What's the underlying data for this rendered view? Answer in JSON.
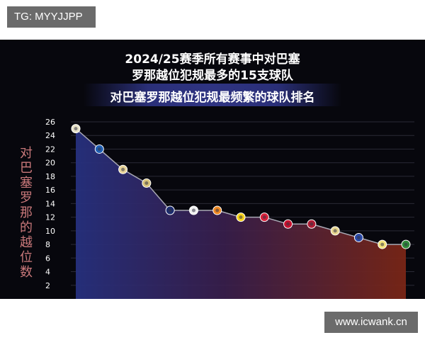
{
  "tag": "TG: MYYJJPP",
  "watermark": "www.icwank.cn",
  "chart_data": {
    "type": "line",
    "title": "2024/25赛季所有赛事中对巴塞",
    "title_line2": "罗那越位犯规最多的15支球队",
    "subtitle": "对巴塞罗那越位犯规最频繁的球队排名",
    "ylabel": "对巴塞罗那的越位数",
    "xlabel": "",
    "yticks": [
      2,
      4,
      6,
      8,
      10,
      12,
      14,
      16,
      18,
      20,
      22,
      24,
      26
    ],
    "ylim": [
      0,
      26
    ],
    "grid": true,
    "legend": "none",
    "series": [
      {
        "values": [
          25,
          22,
          19,
          17,
          13,
          13,
          13,
          12,
          12,
          11,
          11,
          10,
          9,
          8,
          8
        ]
      }
    ],
    "x": [
      1,
      2,
      3,
      4,
      5,
      6,
      7,
      8,
      9,
      10,
      11,
      12,
      13,
      14,
      15
    ],
    "point_badge_colors": [
      "#e8e3c8",
      "#1f5fb5",
      "#e9d59a",
      "#d8c27a",
      "#1c2c6e",
      "#f0f0f0",
      "#f08a24",
      "#f7d21a",
      "#d8213a",
      "#c8102e",
      "#b01c34",
      "#e7d58e",
      "#2b4aa8",
      "#f2e27a",
      "#2f8a3a"
    ],
    "colors": {
      "line": "#a8a8b4",
      "gradient_left": "#2a3590",
      "gradient_right": "#8a2a18",
      "label": "#c9787a"
    }
  }
}
